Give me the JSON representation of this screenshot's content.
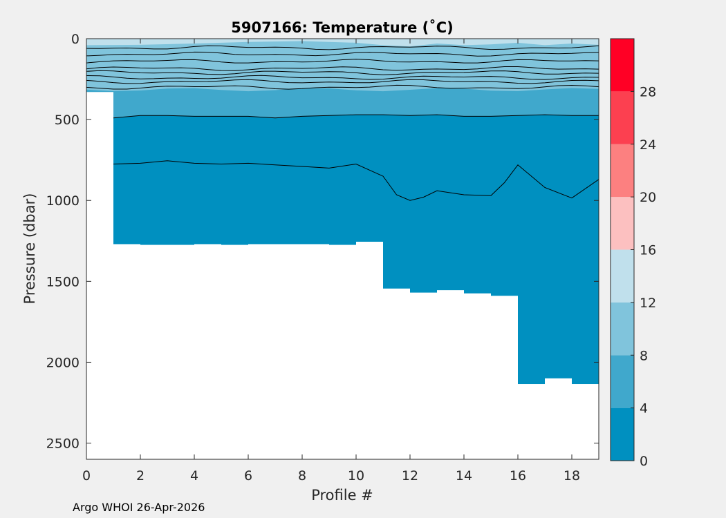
{
  "chart_data": {
    "type": "contour",
    "title": "5907166:  Temperature (˚C)",
    "xlabel": "Profile #",
    "ylabel": "Pressure (dbar)",
    "xlim": [
      0,
      19
    ],
    "ylim": [
      0,
      2600
    ],
    "y_reversed": true,
    "xticks": [
      "0",
      "2",
      "4",
      "6",
      "8",
      "10",
      "12",
      "14",
      "16",
      "18"
    ],
    "yticks": [
      "0",
      "500",
      "1000",
      "1500",
      "2000",
      "2500"
    ],
    "colorbar": {
      "levels": [
        0,
        4,
        8,
        12,
        16,
        20,
        24,
        28,
        32
      ],
      "tick_labels": [
        "0",
        "4",
        "8",
        "12",
        "16",
        "20",
        "24",
        "28"
      ],
      "colors": [
        "#0090c0",
        "#40a8cc",
        "#80c4dc",
        "#c0e0ec",
        "#fcc0c0",
        "#fc8080",
        "#fc4050",
        "#ff0025"
      ]
    },
    "series": [
      {
        "profile": [
          0,
          1,
          2,
          3,
          4,
          5,
          6,
          7,
          8,
          9,
          10,
          11,
          12,
          13,
          14,
          15,
          16,
          17,
          18,
          19
        ],
        "max_pressure": [
          330,
          1270,
          1275,
          1275,
          1270,
          1275,
          1270,
          1270,
          1270,
          1275,
          1255,
          1545,
          1570,
          1555,
          1575,
          1590,
          2135,
          2100,
          2135,
          2060
        ]
      },
      {
        "profile": [
          0,
          1,
          2,
          3,
          4,
          5,
          6,
          7,
          8,
          9,
          10,
          11,
          12,
          13,
          14,
          15,
          16,
          17,
          18,
          19
        ],
        "isotherm_4C_depth": [
          330,
          490,
          475,
          475,
          480,
          480,
          480,
          490,
          480,
          475,
          470,
          470,
          475,
          470,
          480,
          480,
          475,
          470,
          475,
          475
        ]
      },
      {
        "profile": [
          1,
          2,
          3,
          4,
          5,
          6,
          7,
          8,
          9,
          10,
          11,
          11.5,
          12,
          12.5,
          13,
          14,
          15,
          15.5,
          16,
          17,
          18,
          19
        ],
        "isotherm_2C_depth": [
          775,
          770,
          755,
          770,
          775,
          770,
          780,
          790,
          800,
          775,
          850,
          965,
          1000,
          980,
          940,
          965,
          970,
          890,
          780,
          920,
          985,
          870
        ]
      }
    ]
  },
  "footer": "Argo WHOI 26-Apr-2026"
}
